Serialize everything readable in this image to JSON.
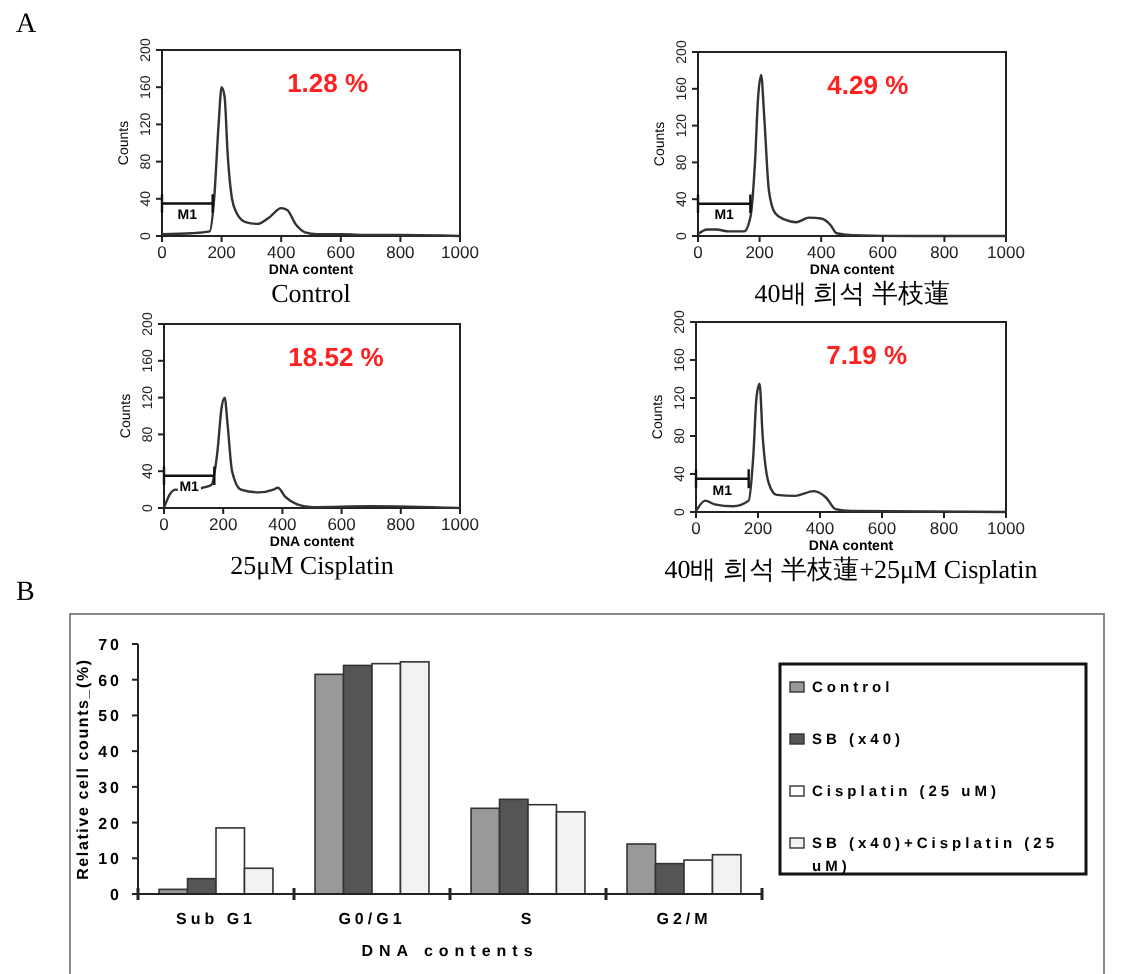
{
  "chart_data": [
    {
      "type": "line",
      "title": "Control",
      "xlabel": "DNA content",
      "ylabel": "Counts",
      "annotations": [
        "1.28 %",
        "M1",
        "A"
      ],
      "xlim": [
        0,
        1000
      ],
      "ylim": [
        0,
        200
      ],
      "xticks": [
        0,
        200,
        400,
        600,
        800,
        1000
      ],
      "yticks": [
        0,
        40,
        80,
        120,
        160,
        200
      ],
      "grid": false,
      "series": [
        {
          "color": "#333333",
          "x": [
            0,
            100,
            160,
            175,
            190,
            200,
            210,
            220,
            235,
            250,
            280,
            320,
            360,
            400,
            420,
            450,
            480,
            520,
            600,
            700,
            800,
            1000
          ],
          "values": [
            2,
            3,
            5,
            40,
            120,
            160,
            150,
            90,
            40,
            25,
            15,
            13,
            20,
            30,
            28,
            12,
            4,
            2,
            2,
            1,
            1,
            0
          ]
        }
      ]
    },
    {
      "type": "line",
      "title": "40배 희석 半枝蓮",
      "xlabel": "DNA content",
      "ylabel": "Counts",
      "annotations": [
        "4.29 %",
        "M1"
      ],
      "xlim": [
        0,
        1000
      ],
      "ylim": [
        0,
        200
      ],
      "xticks": [
        0,
        200,
        400,
        600,
        800,
        1000
      ],
      "yticks": [
        0,
        40,
        80,
        120,
        160,
        200
      ],
      "grid": false,
      "series": [
        {
          "color": "#333333",
          "x": [
            0,
            30,
            60,
            100,
            150,
            170,
            185,
            195,
            205,
            215,
            230,
            250,
            280,
            320,
            360,
            400,
            430,
            450,
            500,
            700,
            1000
          ],
          "values": [
            2,
            7,
            7,
            5,
            5,
            20,
            80,
            150,
            175,
            130,
            50,
            25,
            18,
            15,
            20,
            19,
            12,
            3,
            1,
            0,
            0
          ]
        }
      ]
    },
    {
      "type": "line",
      "title": "25μM  Cisplatin",
      "xlabel": "DNA content",
      "ylabel": "Counts",
      "annotations": [
        "18.52 %",
        "M1"
      ],
      "xlim": [
        0,
        1000
      ],
      "ylim": [
        0,
        200
      ],
      "xticks": [
        0,
        200,
        400,
        600,
        800,
        1000
      ],
      "yticks": [
        0,
        40,
        80,
        120,
        160,
        200
      ],
      "grid": false,
      "series": [
        {
          "color": "#333333",
          "x": [
            0,
            20,
            40,
            80,
            130,
            160,
            180,
            195,
            205,
            215,
            230,
            260,
            320,
            370,
            385,
            410,
            450,
            500,
            700,
            1000
          ],
          "values": [
            0,
            15,
            20,
            18,
            22,
            25,
            60,
            110,
            120,
            90,
            40,
            20,
            17,
            20,
            22,
            12,
            4,
            1,
            2,
            0
          ]
        }
      ]
    },
    {
      "type": "line",
      "title": "40배 희석 半枝蓮+25μM  Cisplatin",
      "xlabel": "DNA content",
      "ylabel": "Counts",
      "annotations": [
        "7.19 %",
        "M1"
      ],
      "xlim": [
        0,
        1000
      ],
      "ylim": [
        0,
        200
      ],
      "xticks": [
        0,
        200,
        400,
        600,
        800,
        1000
      ],
      "yticks": [
        0,
        40,
        80,
        120,
        160,
        200
      ],
      "grid": false,
      "series": [
        {
          "color": "#333333",
          "x": [
            0,
            30,
            60,
            120,
            170,
            185,
            195,
            205,
            215,
            235,
            260,
            320,
            380,
            420,
            450,
            500,
            1000
          ],
          "values": [
            1,
            12,
            8,
            6,
            12,
            60,
            120,
            135,
            80,
            30,
            18,
            17,
            22,
            15,
            3,
            1,
            0
          ]
        }
      ]
    },
    {
      "type": "bar",
      "xlabel": "DNA contents",
      "ylabel": "Relative cell counts_(%)",
      "annotations": [
        "B"
      ],
      "categories": [
        "Sub G1",
        "G0/G1",
        "S",
        "G2/M"
      ],
      "ylim": [
        0,
        70
      ],
      "yticks": [
        0,
        10,
        20,
        30,
        40,
        50,
        60,
        70
      ],
      "grid": false,
      "legend": "right",
      "series": [
        {
          "name": "Control",
          "color": "#999999",
          "values": [
            1.3,
            61.5,
            24,
            14
          ]
        },
        {
          "name": "SB (x40)",
          "color": "#555555",
          "values": [
            4.3,
            64,
            26.5,
            8.5
          ]
        },
        {
          "name": "Cisplatin (25 uM)",
          "color": "#ffffff",
          "values": [
            18.5,
            64.5,
            25,
            9.5
          ]
        },
        {
          "name": "SB (x40)+Cisplatin (25 uM)",
          "color": "#f2f2f2",
          "values": [
            7.2,
            65,
            23,
            11
          ]
        }
      ]
    }
  ]
}
